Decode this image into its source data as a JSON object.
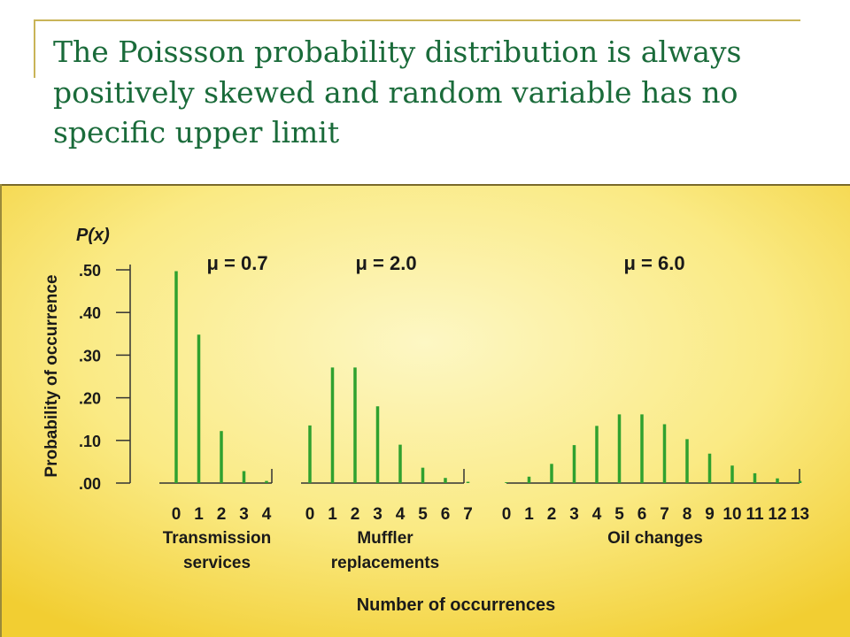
{
  "slide": {
    "title_lines": [
      "The Poissson probability distribution is always",
      "positively skewed and random variable has no",
      "specific upper limit"
    ]
  },
  "colors": {
    "title": "#1a6b3a",
    "bar": "#2fa12f",
    "panel_light": "#fdf6c0",
    "panel_dark": "#f1cd32",
    "rule": "#c9b458"
  },
  "chart_data": [
    {
      "type": "bar",
      "title": "μ = 0.7",
      "ylabel": "Probability of occurrence",
      "y_axis_symbol": "P(x)",
      "yticks": [
        ".00",
        ".10",
        ".20",
        ".30",
        ".40",
        ".50"
      ],
      "ylim": [
        0,
        0.5
      ],
      "categories": [
        "0",
        "1",
        "2",
        "3",
        "4"
      ],
      "values": [
        0.497,
        0.348,
        0.122,
        0.028,
        0.005
      ],
      "xlabel_lines": [
        "Transmission",
        "services"
      ]
    },
    {
      "type": "bar",
      "title": "μ = 2.0",
      "categories": [
        "0",
        "1",
        "2",
        "3",
        "4",
        "5",
        "6",
        "7"
      ],
      "values": [
        0.135,
        0.271,
        0.271,
        0.18,
        0.09,
        0.036,
        0.012,
        0.003
      ],
      "xlabel_lines": [
        "Muffler",
        "replacements"
      ]
    },
    {
      "type": "bar",
      "title": "μ = 6.0",
      "categories": [
        "0",
        "1",
        "2",
        "3",
        "4",
        "5",
        "6",
        "7",
        "8",
        "9",
        "10",
        "11",
        "12",
        "13"
      ],
      "values": [
        0.002,
        0.015,
        0.045,
        0.089,
        0.134,
        0.161,
        0.161,
        0.138,
        0.103,
        0.069,
        0.041,
        0.023,
        0.011,
        0.005
      ],
      "xlabel_lines": [
        "Oil changes"
      ]
    }
  ],
  "shared_xlabel": "Number of occurrences"
}
